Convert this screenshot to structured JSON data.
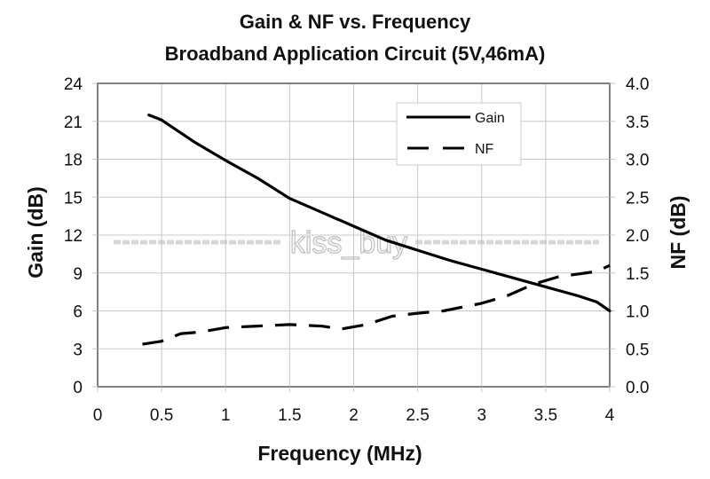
{
  "chart_data": {
    "type": "line",
    "title": "Gain & NF vs. Frequency",
    "subtitle": "Broadband Application Circuit (5V,46mA)",
    "xlabel": "Frequency (MHz)",
    "ylabel": "Gain (dB)",
    "y2label": "NF (dB)",
    "xlim": [
      0,
      4
    ],
    "ylim": [
      0,
      24
    ],
    "y2lim": [
      0,
      4.0
    ],
    "grid": true,
    "legend_position": "top-right",
    "x_ticks": [
      "0",
      "0.5",
      "1",
      "1.5",
      "2",
      "2.5",
      "3",
      "3.5",
      "4"
    ],
    "x_tick_values": [
      0,
      0.5,
      1,
      1.5,
      2,
      2.5,
      3,
      3.5,
      4
    ],
    "y_ticks": [
      "0",
      "3",
      "6",
      "9",
      "12",
      "15",
      "18",
      "21",
      "24"
    ],
    "y_tick_values": [
      0,
      3,
      6,
      9,
      12,
      15,
      18,
      21,
      24
    ],
    "y2_ticks": [
      "0.0",
      "0.5",
      "1.0",
      "1.5",
      "2.0",
      "2.5",
      "3.0",
      "3.5",
      "4.0"
    ],
    "y2_tick_values": [
      0,
      0.5,
      1.0,
      1.5,
      2.0,
      2.5,
      3.0,
      3.5,
      4.0
    ],
    "series": [
      {
        "name": "Gain",
        "axis": "left",
        "style": "solid",
        "x": [
          0.4,
          0.5,
          0.75,
          1.0,
          1.25,
          1.5,
          1.75,
          2.0,
          2.25,
          2.5,
          2.75,
          3.0,
          3.25,
          3.5,
          3.75,
          3.9,
          4.0
        ],
        "values": [
          21.5,
          21.1,
          19.4,
          17.9,
          16.5,
          14.9,
          13.8,
          12.7,
          11.6,
          10.8,
          10.0,
          9.3,
          8.6,
          7.9,
          7.2,
          6.7,
          6.0
        ]
      },
      {
        "name": "NF",
        "axis": "right",
        "style": "dashed",
        "x": [
          0.35,
          0.5,
          0.65,
          0.8,
          1.0,
          1.25,
          1.5,
          1.75,
          1.9,
          2.1,
          2.3,
          2.5,
          2.7,
          3.0,
          3.2,
          3.4,
          3.6,
          3.9,
          4.0
        ],
        "values": [
          0.56,
          0.6,
          0.7,
          0.72,
          0.78,
          0.8,
          0.82,
          0.8,
          0.76,
          0.82,
          0.93,
          0.97,
          1.0,
          1.1,
          1.2,
          1.35,
          1.45,
          1.52,
          1.6
        ]
      }
    ]
  },
  "watermark": "kiss_buy",
  "colors": {
    "line": "#000000",
    "grid": "#c8c8c8",
    "frame": "#808080"
  }
}
